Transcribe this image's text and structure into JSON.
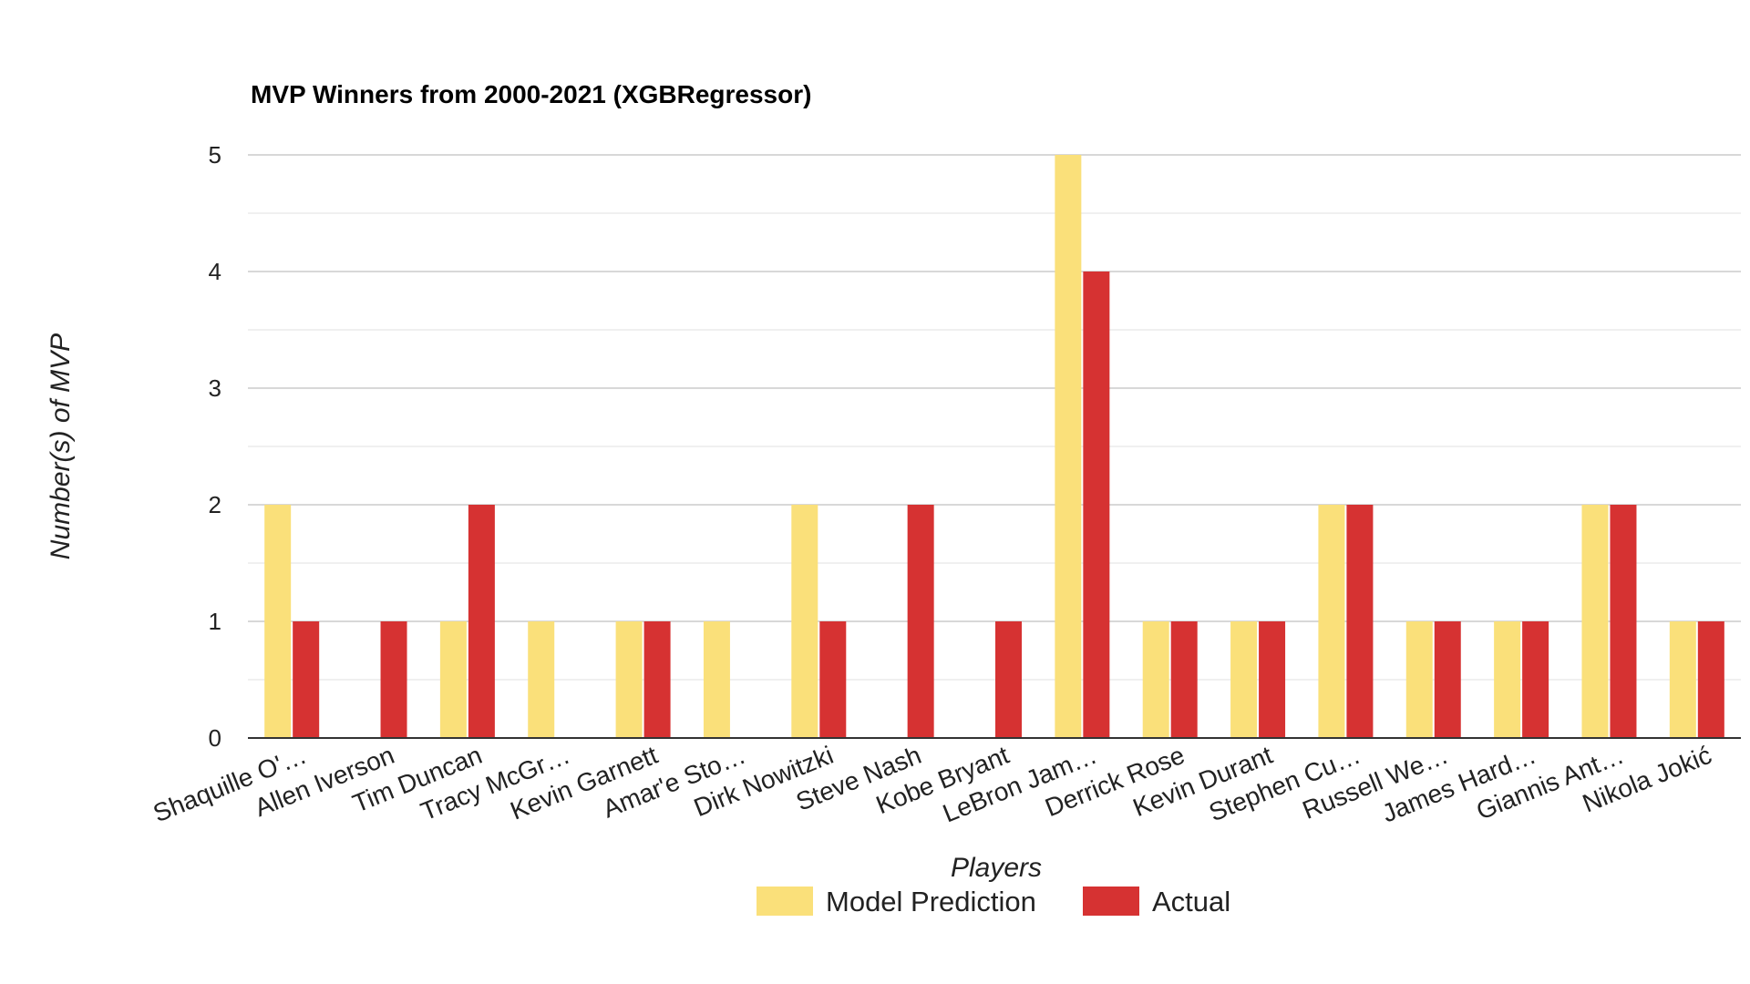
{
  "chart_data": {
    "type": "bar",
    "title": "MVP Winners from 2000-2021 (XGBRegressor)",
    "xlabel": "Players",
    "ylabel": "Number(s) of MVP",
    "ylim": [
      0,
      5
    ],
    "yticks": [
      "0",
      "1",
      "2",
      "3",
      "4",
      "5"
    ],
    "grid": true,
    "legend_position": "bottom",
    "categories": [
      "Shaquille O'…",
      "Allen Iverson",
      "Tim Duncan",
      "Tracy McGr…",
      "Kevin Garnett",
      "Amar'e Sto…",
      "Dirk Nowitzki",
      "Steve Nash",
      "Kobe Bryant",
      "LeBron Jam…",
      "Derrick Rose",
      "Kevin Durant",
      "Stephen Cu…",
      "Russell We…",
      "James Hard…",
      "Giannis Ant…",
      "Nikola Jokić"
    ],
    "series": [
      {
        "name": "Model Prediction",
        "color": "#FAE07A",
        "values": [
          2,
          0,
          1,
          1,
          1,
          1,
          2,
          0,
          0,
          5,
          1,
          1,
          2,
          1,
          1,
          2,
          1
        ]
      },
      {
        "name": "Actual",
        "color": "#D63232",
        "values": [
          1,
          1,
          2,
          0,
          1,
          0,
          1,
          2,
          1,
          4,
          1,
          1,
          2,
          1,
          1,
          2,
          1
        ]
      }
    ]
  }
}
